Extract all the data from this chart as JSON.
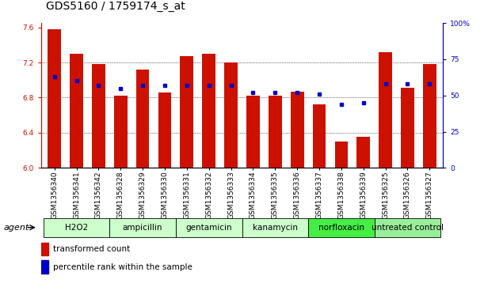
{
  "title": "GDS5160 / 1759174_s_at",
  "samples": [
    "GSM1356340",
    "GSM1356341",
    "GSM1356342",
    "GSM1356328",
    "GSM1356329",
    "GSM1356330",
    "GSM1356331",
    "GSM1356332",
    "GSM1356333",
    "GSM1356334",
    "GSM1356335",
    "GSM1356336",
    "GSM1356337",
    "GSM1356338",
    "GSM1356339",
    "GSM1356325",
    "GSM1356326",
    "GSM1356327"
  ],
  "bar_values": [
    7.58,
    7.3,
    7.18,
    6.82,
    7.12,
    6.86,
    7.27,
    7.3,
    7.2,
    6.82,
    6.82,
    6.87,
    6.72,
    6.3,
    6.35,
    7.32,
    6.91,
    7.18
  ],
  "percentile_values": [
    63,
    60,
    57,
    55,
    57,
    57,
    57,
    57,
    57,
    52,
    52,
    52,
    51,
    44,
    45,
    58,
    58,
    58
  ],
  "groups": [
    {
      "name": "H2O2",
      "start": 0,
      "end": 3,
      "color": "#ccffcc"
    },
    {
      "name": "ampicillin",
      "start": 3,
      "end": 6,
      "color": "#ccffcc"
    },
    {
      "name": "gentamicin",
      "start": 6,
      "end": 9,
      "color": "#ccffcc"
    },
    {
      "name": "kanamycin",
      "start": 9,
      "end": 12,
      "color": "#ccffcc"
    },
    {
      "name": "norfloxacin",
      "start": 12,
      "end": 15,
      "color": "#44ee44"
    },
    {
      "name": "untreated control",
      "start": 15,
      "end": 18,
      "color": "#99ee99"
    }
  ],
  "ylim": [
    6.0,
    7.65
  ],
  "yticks_left": [
    6.0,
    6.4,
    6.8,
    7.2,
    7.6
  ],
  "yticks_right_vals": [
    0,
    25,
    50,
    75,
    100
  ],
  "bar_color": "#cc1100",
  "dot_color": "#0000cc",
  "title_fontsize": 10,
  "tick_fontsize": 6.5,
  "legend_fontsize": 7.5,
  "agent_fontsize": 8,
  "group_label_fontsize": 7.5
}
